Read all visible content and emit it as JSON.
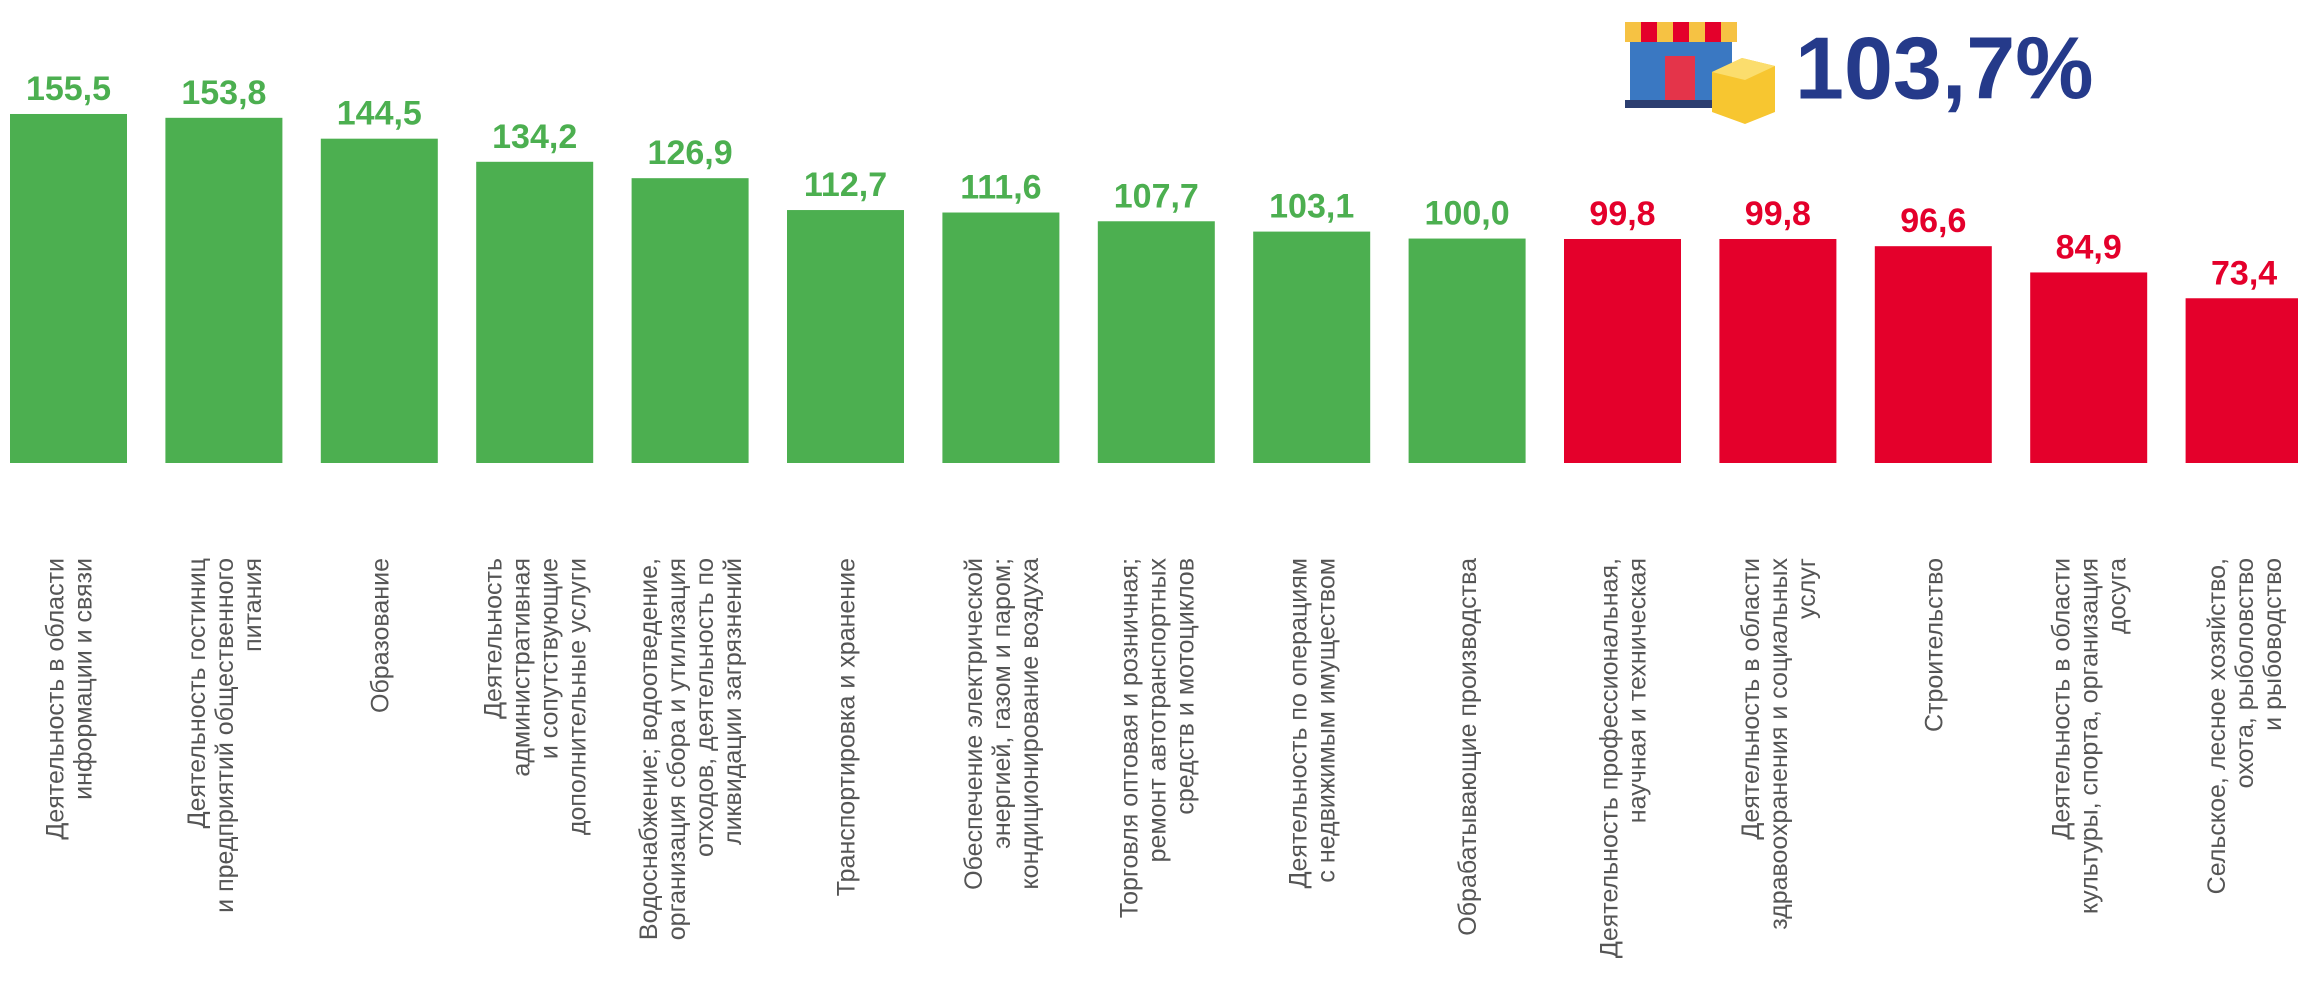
{
  "chart_data": {
    "type": "bar",
    "annotation": "103,7%",
    "categories": [
      [
        "Деятельность в области",
        "информации и связи"
      ],
      [
        "Деятельность гостиниц",
        "и предприятий общественного",
        "питания"
      ],
      [
        "Образование"
      ],
      [
        "Деятельность",
        "административная",
        "и сопутствующие",
        "дополнительные услуги"
      ],
      [
        "Водоснабжение; водоотведение,",
        "организация сбора и утилизация",
        "отходов, деятельность по",
        "ликвидации загрязнений"
      ],
      [
        "Транспортировка и хранение"
      ],
      [
        "Обеспечение электрической",
        "энергией, газом и паром;",
        "кондиционирование воздуха"
      ],
      [
        "Торговля оптовая и розничная;",
        "ремонт автотранспортных",
        "средств и мотоциклов"
      ],
      [
        "Деятельность по операциям",
        "с недвижимым имуществом"
      ],
      [
        "Обрабатывающие производства"
      ],
      [
        "Деятельность профессиональная,",
        "научная и техническая"
      ],
      [
        "Деятельность в области",
        "здравоохранения и социальных",
        "услуг"
      ],
      [
        "Строительство"
      ],
      [
        "Деятельность в области",
        "культуры, спорта, организация",
        "досуга"
      ],
      [
        "Сельское, лесное хозяйство,",
        "охота, рыболовство",
        "и рыбоводство"
      ]
    ],
    "values": [
      155.5,
      153.8,
      144.5,
      134.2,
      126.9,
      112.7,
      111.6,
      107.7,
      103.1,
      100.0,
      99.8,
      99.8,
      96.6,
      84.9,
      73.4
    ],
    "value_labels": [
      "155,5",
      "153,8",
      "144,5",
      "134,2",
      "126,9",
      "112,7",
      "111,6",
      "107,7",
      "103,1",
      "100,0",
      "99,8",
      "99,8",
      "96,6",
      "84,9",
      "73,4"
    ],
    "colors": [
      "#4caf50",
      "#4caf50",
      "#4caf50",
      "#4caf50",
      "#4caf50",
      "#4caf50",
      "#4caf50",
      "#4caf50",
      "#4caf50",
      "#4caf50",
      "#e4002b",
      "#e4002b",
      "#e4002b",
      "#e4002b",
      "#e4002b"
    ],
    "ylim": [
      0,
      180
    ]
  }
}
